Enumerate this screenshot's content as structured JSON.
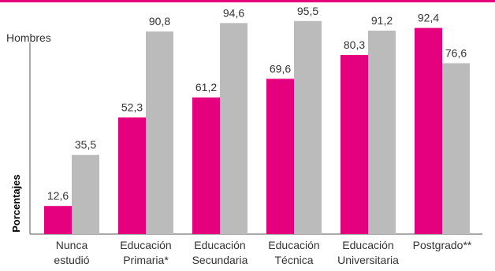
{
  "series_label": "Hombres",
  "y_axis_title": "Porcentajes",
  "chart_data": {
    "type": "bar",
    "ylabel": "Porcentajes",
    "ylim": [
      0,
      100
    ],
    "grid": false,
    "categories": [
      [
        "Nunca",
        "estudió"
      ],
      [
        "Educación",
        "Primaria*"
      ],
      [
        "Educación",
        "Secundaria"
      ],
      [
        "Educación",
        "Técnica"
      ],
      [
        "Educación",
        "Universitaria"
      ],
      [
        "Postgrado**"
      ]
    ],
    "series": [
      {
        "values": [
          12.6,
          52.3,
          61.2,
          69.6,
          80.3,
          92.4
        ],
        "labels": [
          "12,6",
          "52,3",
          "61,2",
          "69,6",
          "80,3",
          "92,4"
        ],
        "color": "#e5007e"
      },
      {
        "values": [
          35.5,
          90.8,
          94.6,
          95.5,
          91.2,
          76.6
        ],
        "labels": [
          "35,5",
          "90,8",
          "94,6",
          "95,5",
          "91,2",
          "76,6"
        ],
        "color": "#bbbbbb"
      }
    ]
  }
}
